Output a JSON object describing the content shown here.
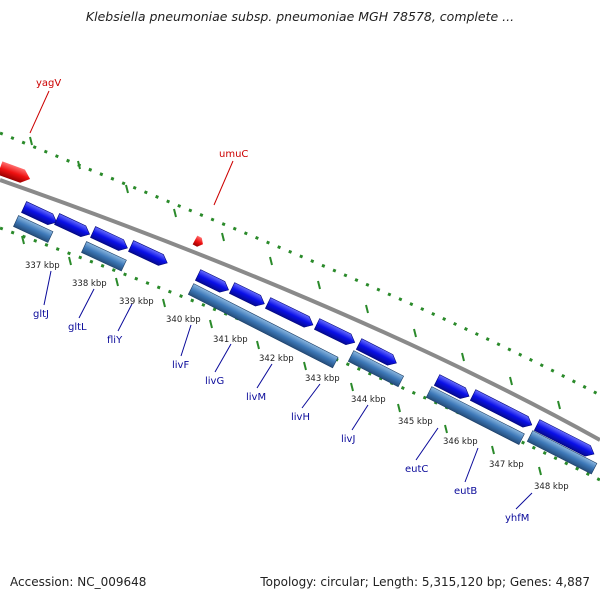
{
  "title": "Klebsiella pneumoniae subsp. pneumoniae MGH 78578, complete ...",
  "footer": {
    "accession": "Accession: NC_009648",
    "summary": "Topology: circular; Length: 5,315,120 bp; Genes: 4,887"
  },
  "colors": {
    "gene_forward": "#0a10e8",
    "gene_cds": "#3d78b8",
    "gene_highlight": "#ee1111",
    "backbone": "#8a8a8a",
    "tick": "#2a8a2a",
    "gene_label": "#0a0a9a",
    "highlight_label": "#cc0000"
  },
  "ticks": [
    "337 kbp",
    "338 kbp",
    "339 kbp",
    "340 kbp",
    "341 kbp",
    "342 kbp",
    "343 kbp",
    "344 kbp",
    "345 kbp",
    "346 kbp",
    "347 kbp",
    "348 kbp"
  ],
  "gene_labels": [
    "gltJ",
    "gltL",
    "fliY",
    "livF",
    "livG",
    "livM",
    "livH",
    "livJ",
    "eutC",
    "eutB",
    "yhfM"
  ],
  "highlight_labels": [
    "yagV",
    "umuC"
  ]
}
